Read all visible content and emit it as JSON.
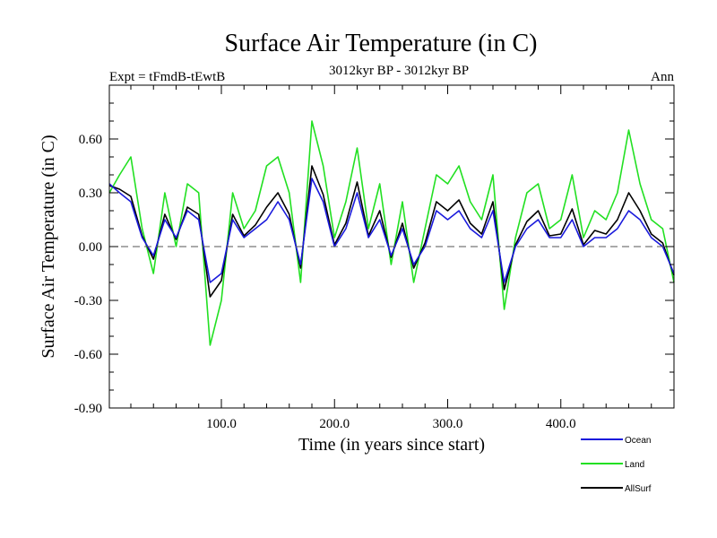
{
  "chart_data": {
    "type": "line",
    "title": "Surface Air Temperature (in C)",
    "subtitle_left": "Expt = tFmdB-tEwtB",
    "subtitle_center": "3012kyr BP - 3012kyr BP",
    "subtitle_right": "Ann",
    "xlabel": "Time (in years since start)",
    "ylabel": "Surface Air Temperature (in C)",
    "xlim": [
      1,
      500
    ],
    "ylim": [
      -0.9,
      0.9
    ],
    "x_major_ticks": [
      100,
      200,
      300,
      400
    ],
    "x_tick_labels": [
      "100.0",
      "200.0",
      "300.0",
      "400.0"
    ],
    "y_major_ticks": [
      -0.9,
      -0.6,
      -0.3,
      0.0,
      0.3,
      0.6
    ],
    "y_tick_labels": [
      "-0.90",
      "-0.60",
      "-0.30",
      "0.00",
      "0.30",
      "0.60"
    ],
    "zero_line": true,
    "legend_position": "bottom-right",
    "series": [
      {
        "name": "Ocean",
        "color": "#1a1adc",
        "x": [
          1,
          10,
          20,
          30,
          40,
          50,
          60,
          70,
          80,
          90,
          100,
          110,
          120,
          130,
          140,
          150,
          160,
          170,
          180,
          190,
          200,
          210,
          220,
          230,
          240,
          250,
          260,
          270,
          280,
          290,
          300,
          310,
          320,
          330,
          340,
          350,
          360,
          370,
          380,
          390,
          400,
          410,
          420,
          430,
          440,
          450,
          460,
          470,
          480,
          490,
          500
        ],
        "values": [
          0.35,
          0.3,
          0.25,
          0.05,
          -0.05,
          0.15,
          0.05,
          0.2,
          0.15,
          -0.2,
          -0.15,
          0.15,
          0.05,
          0.1,
          0.15,
          0.25,
          0.15,
          -0.1,
          0.38,
          0.25,
          0.0,
          0.1,
          0.3,
          0.05,
          0.15,
          -0.05,
          0.1,
          -0.1,
          0.0,
          0.2,
          0.15,
          0.2,
          0.1,
          0.05,
          0.2,
          -0.2,
          0.0,
          0.1,
          0.15,
          0.05,
          0.05,
          0.15,
          0.0,
          0.05,
          0.05,
          0.1,
          0.2,
          0.15,
          0.05,
          0.0,
          -0.15
        ]
      },
      {
        "name": "Land",
        "color": "#22e022",
        "x": [
          1,
          10,
          20,
          30,
          40,
          50,
          60,
          70,
          80,
          90,
          100,
          110,
          120,
          130,
          140,
          150,
          160,
          170,
          180,
          190,
          200,
          210,
          220,
          230,
          240,
          250,
          260,
          270,
          280,
          290,
          300,
          310,
          320,
          330,
          340,
          350,
          360,
          370,
          380,
          390,
          400,
          410,
          420,
          430,
          440,
          450,
          460,
          470,
          480,
          490,
          500
        ],
        "values": [
          0.3,
          0.4,
          0.5,
          0.1,
          -0.15,
          0.3,
          0.0,
          0.35,
          0.3,
          -0.55,
          -0.3,
          0.3,
          0.1,
          0.2,
          0.45,
          0.5,
          0.3,
          -0.2,
          0.7,
          0.45,
          0.05,
          0.25,
          0.55,
          0.1,
          0.35,
          -0.1,
          0.25,
          -0.2,
          0.1,
          0.4,
          0.35,
          0.45,
          0.25,
          0.15,
          0.4,
          -0.35,
          0.05,
          0.3,
          0.35,
          0.1,
          0.15,
          0.4,
          0.05,
          0.2,
          0.15,
          0.3,
          0.65,
          0.35,
          0.15,
          0.1,
          -0.2
        ]
      },
      {
        "name": "AllSurf",
        "color": "#000000",
        "x": [
          1,
          10,
          20,
          30,
          40,
          50,
          60,
          70,
          80,
          90,
          100,
          110,
          120,
          130,
          140,
          150,
          160,
          170,
          180,
          190,
          200,
          210,
          220,
          230,
          240,
          250,
          260,
          270,
          280,
          290,
          300,
          310,
          320,
          330,
          340,
          350,
          360,
          370,
          380,
          390,
          400,
          410,
          420,
          430,
          440,
          450,
          460,
          470,
          480,
          490,
          500
        ],
        "values": [
          0.34,
          0.32,
          0.28,
          0.06,
          -0.07,
          0.18,
          0.04,
          0.22,
          0.18,
          -0.28,
          -0.19,
          0.18,
          0.06,
          0.12,
          0.22,
          0.3,
          0.18,
          -0.12,
          0.45,
          0.29,
          0.01,
          0.13,
          0.36,
          0.06,
          0.2,
          -0.06,
          0.13,
          -0.12,
          0.02,
          0.25,
          0.2,
          0.26,
          0.13,
          0.07,
          0.25,
          -0.24,
          0.01,
          0.14,
          0.2,
          0.06,
          0.07,
          0.21,
          0.01,
          0.09,
          0.07,
          0.15,
          0.3,
          0.2,
          0.07,
          0.02,
          -0.16
        ]
      }
    ]
  }
}
